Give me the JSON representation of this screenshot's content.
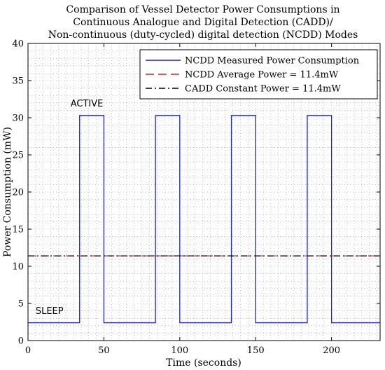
{
  "chart_data": {
    "type": "line",
    "title_lines": [
      "Comparison of Vessel Detector Power Consumptions in",
      "Continuous Analogue and Digital Detection (CADD)/",
      "Non-continuous (duty-cycled) digital detection (NCDD) Modes"
    ],
    "xlabel": "Time (seconds)",
    "ylabel": "Power Consumption (mW)",
    "xlim": [
      0,
      232
    ],
    "ylim": [
      0,
      40
    ],
    "xticks": [
      0,
      50,
      100,
      150,
      200
    ],
    "yticks": [
      0,
      5,
      10,
      15,
      20,
      25,
      30,
      35,
      40
    ],
    "grid": true,
    "legend_position": "top-right",
    "series": [
      {
        "name": "NCDD Measured Power Consumption",
        "color": "#1f1fd6",
        "style": "solid",
        "x": [
          0,
          34,
          34,
          50,
          50,
          84,
          84,
          100,
          100,
          134,
          134,
          150,
          150,
          184,
          184,
          200,
          200,
          232
        ],
        "y": [
          2.4,
          2.4,
          30.3,
          30.3,
          2.4,
          2.4,
          30.3,
          30.3,
          2.4,
          2.4,
          30.3,
          30.3,
          2.4,
          2.4,
          30.3,
          30.3,
          2.4,
          2.4
        ]
      },
      {
        "name": "NCDD Average Power = 11.4mW",
        "color": "#d62020",
        "style": "dashed",
        "x": [
          0,
          232
        ],
        "y": [
          11.4,
          11.4
        ]
      },
      {
        "name": "CADD Constant Power = 11.4mW",
        "color": "#000000",
        "style": "dashdot",
        "x": [
          0,
          232
        ],
        "y": [
          11.4,
          11.4
        ]
      }
    ],
    "annotations": [
      {
        "text": "ACTIVE",
        "x": 28,
        "y": 31.5
      },
      {
        "text": "SLEEP",
        "x": 5,
        "y": 3.6
      }
    ]
  }
}
